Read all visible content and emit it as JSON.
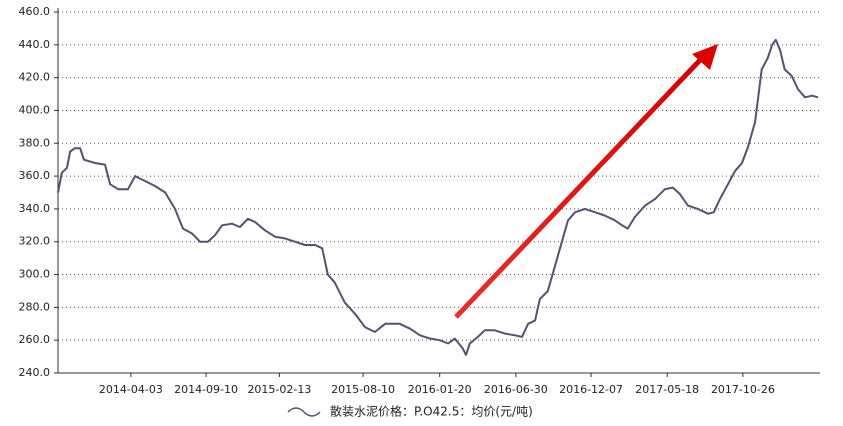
{
  "chart_data": {
    "type": "line",
    "xlim": [
      "2013-10-30",
      "2018-04-08"
    ],
    "xticks": [
      "2014-04-03",
      "2014-09-10",
      "2015-02-13",
      "2015-08-10",
      "2016-01-20",
      "2016-06-30",
      "2016-12-07",
      "2017-05-18",
      "2017-10-26"
    ],
    "ylim": [
      240,
      460
    ],
    "yticks": [
      {
        "value": 240,
        "label": "240.0"
      },
      {
        "value": 260,
        "label": "260.0"
      },
      {
        "value": 280,
        "label": "280.0"
      },
      {
        "value": 300,
        "label": "300.0"
      },
      {
        "value": 320,
        "label": "320.0"
      },
      {
        "value": 340,
        "label": "340.0"
      },
      {
        "value": 360,
        "label": "360.0"
      },
      {
        "value": 380,
        "label": "380.0"
      },
      {
        "value": 400,
        "label": "400.0"
      },
      {
        "value": 420,
        "label": "420.0"
      },
      {
        "value": 440,
        "label": "440.0"
      },
      {
        "value": 460,
        "label": "460.0"
      }
    ],
    "grid": true,
    "legend": "bottom",
    "x": [
      "2013-10-30",
      "2013-11-07",
      "2013-11-18",
      "2013-11-25",
      "2013-12-05",
      "2013-12-16",
      "2013-12-24",
      "2014-01-17",
      "2014-02-07",
      "2014-02-18",
      "2014-03-07",
      "2014-03-28",
      "2014-04-12",
      "2014-05-03",
      "2014-05-24",
      "2014-06-15",
      "2014-07-06",
      "2014-07-23",
      "2014-08-11",
      "2014-08-28",
      "2014-09-14",
      "2014-09-29",
      "2014-10-14",
      "2014-11-04",
      "2014-11-21",
      "2014-12-08",
      "2014-12-23",
      "2015-01-13",
      "2015-02-04",
      "2015-02-25",
      "2015-03-18",
      "2015-04-08",
      "2015-04-30",
      "2015-05-15",
      "2015-05-27",
      "2015-06-11",
      "2015-07-02",
      "2015-07-24",
      "2015-08-14",
      "2015-09-04",
      "2015-09-26",
      "2015-10-27",
      "2015-11-18",
      "2015-12-09",
      "2015-12-30",
      "2016-01-20",
      "2016-02-07",
      "2016-02-21",
      "2016-03-09",
      "2016-03-16",
      "2016-03-24",
      "2016-04-10",
      "2016-04-25",
      "2016-05-16",
      "2016-06-07",
      "2016-06-28",
      "2016-07-13",
      "2016-07-26",
      "2016-08-10",
      "2016-08-20",
      "2016-09-06",
      "2016-09-21",
      "2016-10-06",
      "2016-10-19",
      "2016-11-03",
      "2016-11-24",
      "2016-12-15",
      "2017-01-05",
      "2017-01-27",
      "2017-02-11",
      "2017-02-23",
      "2017-03-10",
      "2017-04-01",
      "2017-04-22",
      "2017-05-13",
      "2017-05-30",
      "2017-06-14",
      "2017-07-01",
      "2017-07-22",
      "2017-08-13",
      "2017-08-25",
      "2017-09-07",
      "2017-09-24",
      "2017-10-09",
      "2017-10-24",
      "2017-11-06",
      "2017-11-21",
      "2017-12-05",
      "2017-12-18",
      "2017-12-27",
      "2018-01-04",
      "2018-01-13",
      "2018-01-23",
      "2018-02-07",
      "2018-02-20",
      "2018-03-07",
      "2018-03-22",
      "2018-04-04"
    ],
    "series": [
      {
        "name": "散装水泥价格：P.O42.5：均价(元/吨)",
        "color": "#56516f",
        "values": [
          350,
          362,
          365,
          375,
          377,
          377,
          370,
          368,
          367,
          355,
          352,
          352,
          360,
          357,
          354,
          350,
          340,
          328,
          325,
          320,
          320,
          324,
          330,
          331,
          329,
          334,
          332,
          327,
          323,
          322,
          320,
          318,
          318,
          316,
          300,
          295,
          283,
          276,
          268,
          265,
          270,
          270,
          267,
          263,
          261,
          260,
          258,
          261,
          255,
          251,
          258,
          262,
          266,
          266,
          264,
          263,
          262,
          270,
          272,
          285,
          290,
          305,
          320,
          333,
          338,
          340,
          338,
          336,
          333,
          330,
          328,
          335,
          342,
          346,
          352,
          353,
          349,
          342,
          340,
          337,
          338,
          346,
          355,
          363,
          368,
          378,
          393,
          425,
          432,
          440,
          443,
          437,
          425,
          421,
          413,
          408,
          409,
          408
        ]
      }
    ]
  }
}
